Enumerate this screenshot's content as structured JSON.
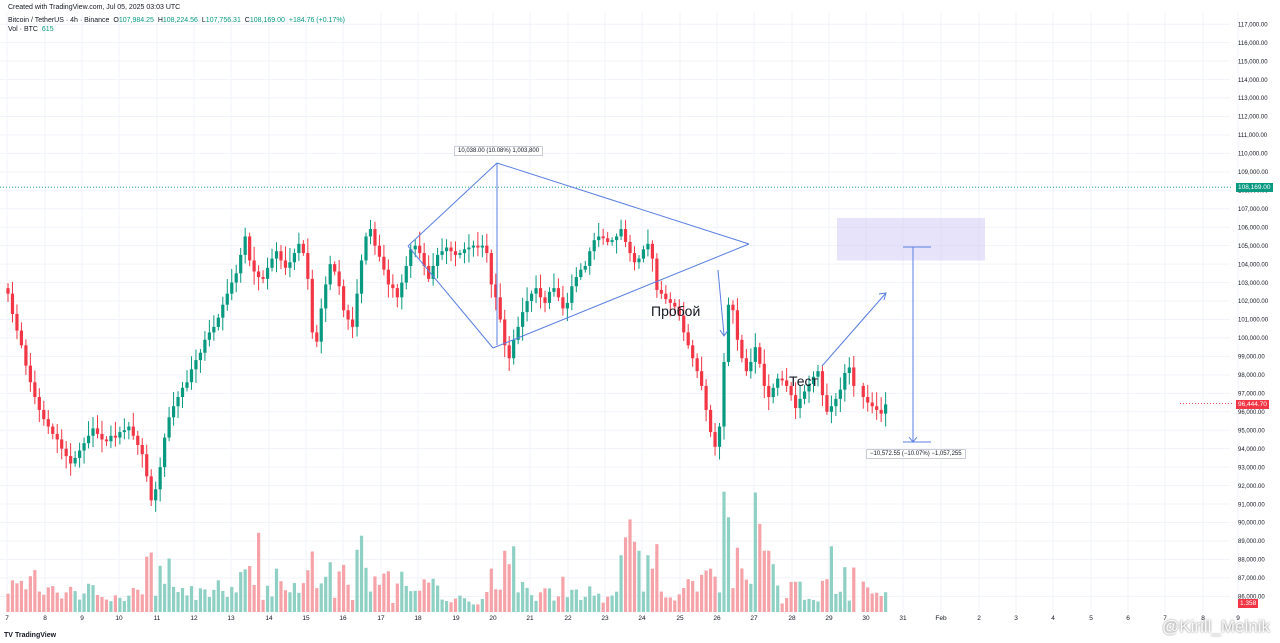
{
  "header": {
    "created_with": "Created with TradingView.com, Jul 05, 2025 03:03 UTC",
    "symbol": "Bitcoin / TetherUS · 4h · Binance",
    "ohlc": [
      {
        "k": "O",
        "v": "107,984.25"
      },
      {
        "k": "H",
        "v": "108,224.56"
      },
      {
        "k": "L",
        "v": "107,756.31"
      },
      {
        "k": "C",
        "v": "108,169.00"
      }
    ],
    "change": "+184.76 (+0.17%)",
    "vol_label": "Vol · BTC",
    "vol_value": "615"
  },
  "annotations": {
    "measure_up": "10,038.00 (10.08%) 1,003,800",
    "measure_down": "−10,572.55 (−10.07%) −1,057,255",
    "breakout": "Пробой",
    "test": "Тест"
  },
  "price_axis": {
    "current_price": "108,169.00",
    "last_price": "96,444.70",
    "volume_badge": "1.358"
  },
  "footer": {
    "logo": "TradingView",
    "watermark": "@Kirill_Melnik"
  },
  "colors": {
    "up": "#089981",
    "down": "#f23645",
    "up_vol": "#8fd0c4",
    "down_vol": "#f5a3a8",
    "drawing": "#5a7fe0",
    "zone": "#c9c0f5"
  },
  "chart_data": {
    "type": "candlestick",
    "title": "Bitcoin / TetherUS · 4h · Binance",
    "timeframe": "4h",
    "y_ticks": [
      "117,000.00",
      "116,000.00",
      "115,000.00",
      "114,000.00",
      "113,000.00",
      "112,000.00",
      "111,000.00",
      "110,000.00",
      "109,000.00",
      "108,000.00",
      "107,000.00",
      "106,000.00",
      "105,000.00",
      "104,000.00",
      "103,000.00",
      "102,000.00",
      "101,000.00",
      "100,000.00",
      "99,000.00",
      "98,000.00",
      "97,000.00",
      "96,000.00",
      "95,000.00",
      "94,000.00",
      "93,000.00",
      "92,000.00",
      "91,000.00",
      "90,000.00",
      "89,000.00",
      "88,000.00",
      "87,000.00",
      "86,000.00"
    ],
    "x_ticks": [
      "7",
      "8",
      "9",
      "10",
      "11",
      "12",
      "13",
      "14",
      "15",
      "16",
      "17",
      "18",
      "19",
      "20",
      "21",
      "22",
      "23",
      "24",
      "25",
      "26",
      "27",
      "28",
      "29",
      "30",
      "31",
      "Feb",
      "2",
      "3",
      "4",
      "5",
      "6",
      "7",
      "8",
      "9"
    ],
    "ylim": [
      85500,
      117500
    ],
    "closes": [
      102400,
      101300,
      100400,
      99600,
      98500,
      97600,
      96800,
      96100,
      95600,
      95200,
      94800,
      94500,
      94000,
      93600,
      93200,
      93500,
      93900,
      94300,
      94700,
      95100,
      94800,
      94500,
      94400,
      94700,
      94600,
      94900,
      95000,
      95200,
      94700,
      94200,
      93700,
      92500,
      91200,
      91800,
      93000,
      94600,
      95700,
      96300,
      96800,
      97300,
      97600,
      98300,
      98800,
      99200,
      99900,
      100300,
      100600,
      101100,
      101800,
      102400,
      103000,
      103500,
      104500,
      105500,
      104200,
      103600,
      103300,
      103200,
      103800,
      104300,
      104700,
      104200,
      103800,
      104100,
      104600,
      105100,
      104600,
      103200,
      100300,
      99800,
      101600,
      102900,
      104000,
      103600,
      102800,
      101500,
      101000,
      100600,
      102400,
      104200,
      105500,
      105900,
      105000,
      104400,
      103700,
      102900,
      102700,
      102200,
      103000,
      103900,
      104800,
      105000,
      104600,
      103900,
      103200,
      103900,
      104500,
      104700,
      104900,
      104700,
      104500,
      104600,
      104800,
      104900,
      105000,
      104900,
      105000,
      104600,
      102900,
      102200,
      101000,
      99600,
      98900,
      99900,
      100600,
      101400,
      102000,
      102400,
      102700,
      102200,
      101900,
      102500,
      102700,
      102200,
      101600,
      101900,
      102800,
      103300,
      103700,
      103900,
      104700,
      105300,
      105500,
      105400,
      105200,
      105300,
      105500,
      105900,
      105200,
      104600,
      104100,
      104300,
      104800,
      105100,
      104300,
      102600,
      102400,
      102100,
      101900,
      101700,
      101200,
      100300,
      99600,
      98900,
      98200,
      97400,
      96100,
      94900,
      94100,
      95200,
      98700,
      101800,
      101500,
      99900,
      98900,
      98200,
      98700,
      99500,
      98600,
      97400,
      96800,
      97300,
      97800,
      97700,
      97400,
      96900,
      96200,
      96700,
      97100,
      97500,
      97900,
      98200,
      96900,
      96000,
      96300,
      96700,
      97200,
      98100,
      98400,
      97400,
      96800,
      96500,
      96300,
      96100,
      95900,
      96400
    ]
  }
}
